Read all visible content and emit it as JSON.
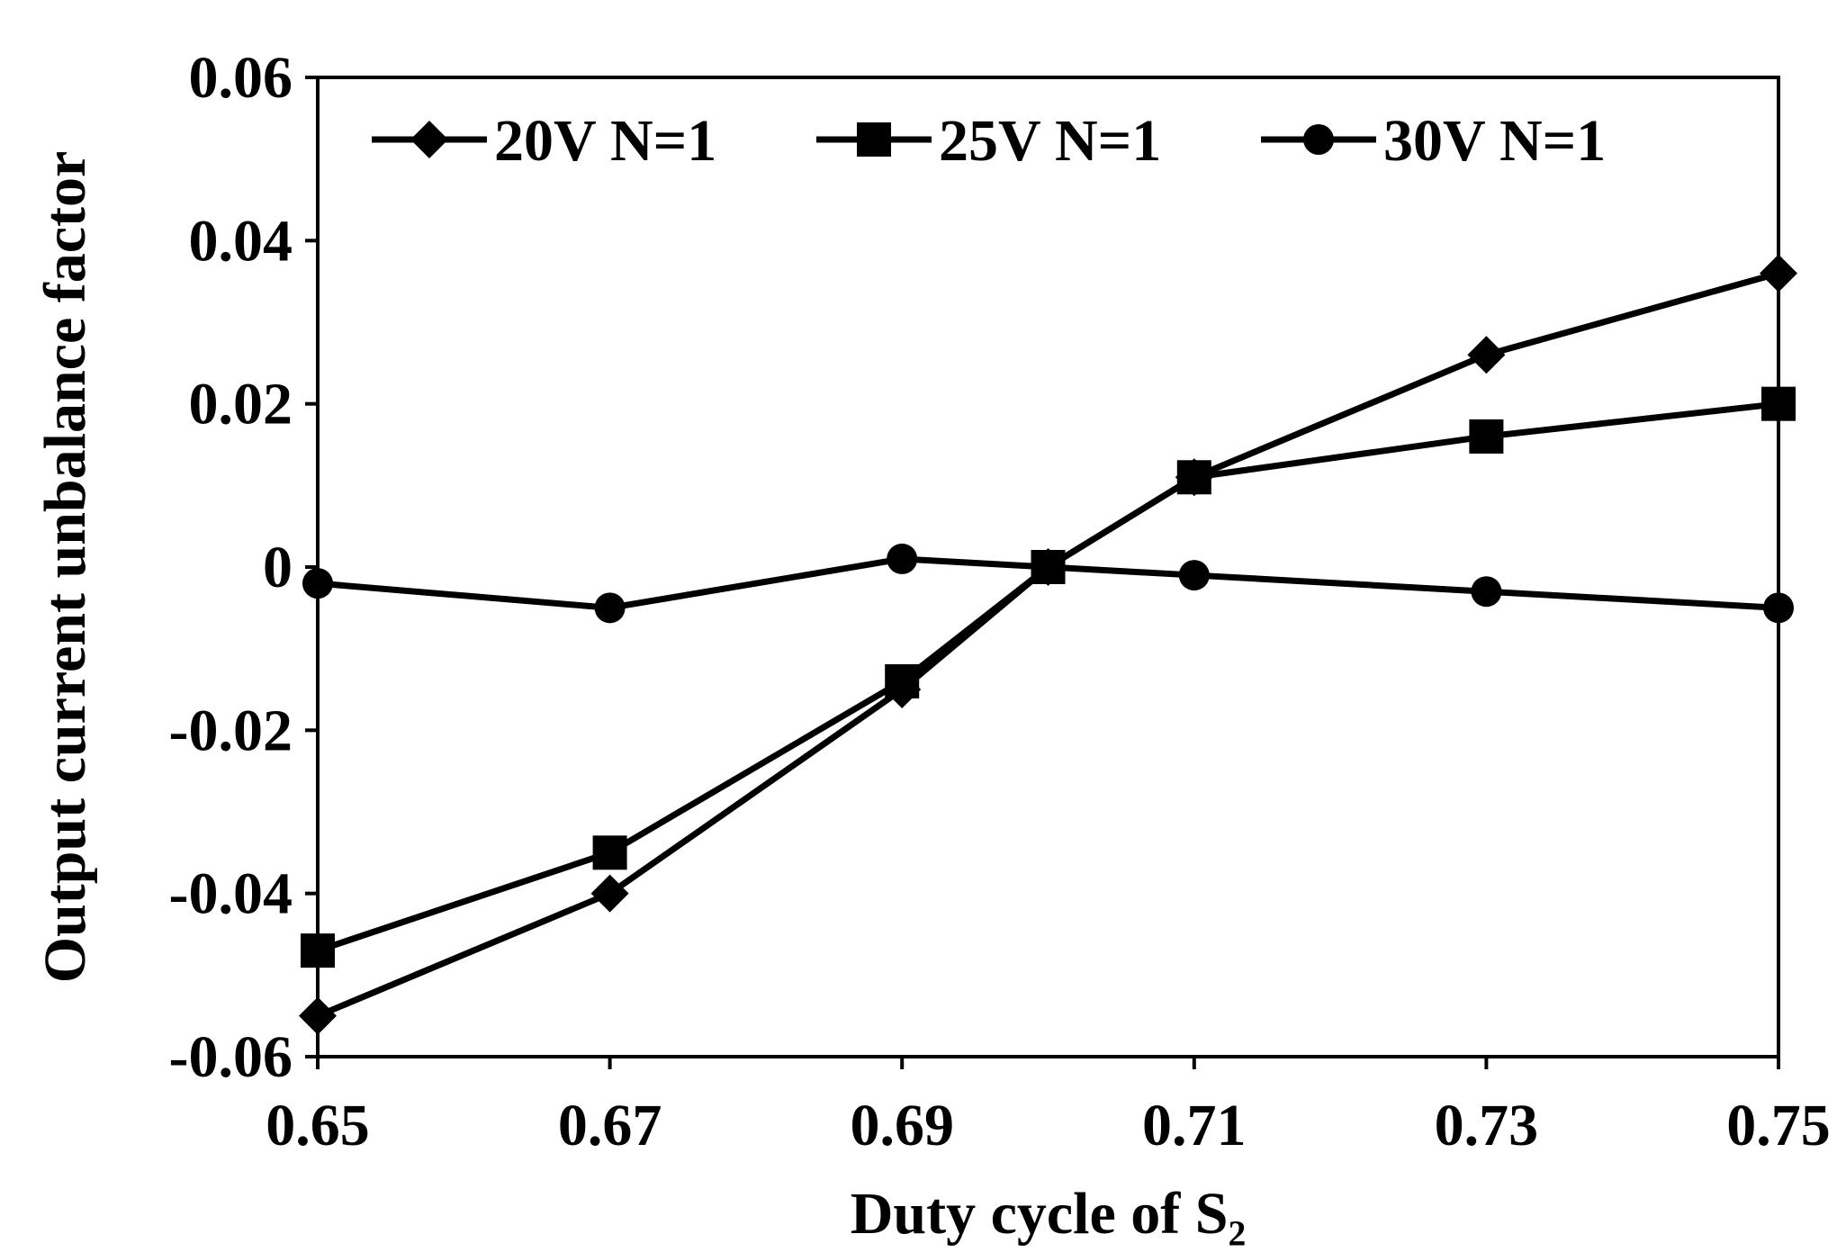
{
  "chart_data": {
    "type": "line",
    "title": "",
    "xlabel": "Duty cycle of S₂",
    "ylabel": "Output current unbalance factor",
    "x": [
      0.65,
      0.67,
      0.69,
      0.7,
      0.71,
      0.73,
      0.75
    ],
    "xlim": [
      0.65,
      0.75
    ],
    "ylim": [
      -0.06,
      0.06
    ],
    "xticks": [
      0.65,
      0.67,
      0.69,
      0.71,
      0.73,
      0.75
    ],
    "xtick_labels": [
      "0.65",
      "0.67",
      "0.69",
      "0.71",
      "0.73",
      "0.75"
    ],
    "yticks": [
      -0.06,
      -0.04,
      -0.02,
      0,
      0.02,
      0.04,
      0.06
    ],
    "ytick_labels": [
      "-0.06",
      "-0.04",
      "-0.02",
      "0",
      "0.02",
      "0.04",
      "0.06"
    ],
    "grid": false,
    "legend_position": "top",
    "series": [
      {
        "name": "20V N=1",
        "marker": "diamond",
        "values": [
          -0.055,
          -0.04,
          -0.015,
          0.0,
          0.011,
          0.026,
          0.036
        ]
      },
      {
        "name": "25V N=1",
        "marker": "square",
        "values": [
          -0.047,
          -0.035,
          -0.014,
          0.0,
          0.011,
          0.016,
          0.02
        ]
      },
      {
        "name": "30V N=1",
        "marker": "circle",
        "values": [
          -0.002,
          -0.005,
          0.001,
          0.0,
          -0.001,
          -0.003,
          -0.005
        ]
      }
    ],
    "colors": {
      "line": "#000000",
      "axis": "#000000",
      "background": "#ffffff"
    }
  }
}
